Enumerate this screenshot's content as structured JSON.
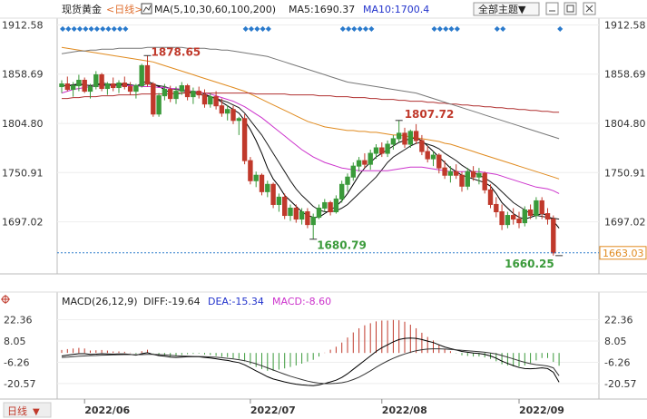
{
  "header": {
    "instrument": "现货黄金",
    "period": "<日线>",
    "ma_label": "MA(5,10,30,60,100,200)",
    "ma5_label": "MA5:1690.37",
    "ma10_label": "MA10:1700.4",
    "theme_select": "全部主题▼"
  },
  "macd_header": {
    "name": "MACD(26,12,9)",
    "diff": "DIFF:-19.64",
    "dea": "DEA:-15.34",
    "macd": "MACD:-8.60"
  },
  "colors": {
    "up": "#3a9a3a",
    "down": "#c0392b",
    "ma5": "#000000",
    "ma10": "#1a1a1a",
    "ma30": "#cc33cc",
    "ma60": "#e08a1e",
    "ma100": "#b03030",
    "ma200": "#777777",
    "macd_pos": "#c0392b",
    "macd_neg": "#3a9a3a",
    "last_price_line": "#2a7acc"
  },
  "chart_data": [
    {
      "type": "candlestick",
      "y_ticks": [
        "1912.58",
        "1858.69",
        "1804.80",
        "1750.91",
        "1697.02"
      ],
      "y_range": [
        1640,
        1920
      ],
      "x_ticks": [
        "2022/06",
        "2022/07",
        "2022/08",
        "2022/09"
      ],
      "annotations": {
        "high1": "1878.65",
        "high2": "1807.72",
        "low1": "1680.79",
        "low2": "1660.25"
      },
      "last_price": "1663.03",
      "candles": [
        [
          1845,
          1852,
          1838,
          1848
        ],
        [
          1848,
          1856,
          1840,
          1842
        ],
        [
          1842,
          1850,
          1834,
          1846
        ],
        [
          1846,
          1858,
          1840,
          1852
        ],
        [
          1852,
          1855,
          1838,
          1840
        ],
        [
          1840,
          1848,
          1832,
          1845
        ],
        [
          1845,
          1862,
          1842,
          1858
        ],
        [
          1858,
          1860,
          1840,
          1843
        ],
        [
          1843,
          1850,
          1836,
          1848
        ],
        [
          1848,
          1855,
          1840,
          1844
        ],
        [
          1844,
          1852,
          1838,
          1849
        ],
        [
          1849,
          1856,
          1842,
          1845
        ],
        [
          1845,
          1850,
          1836,
          1840
        ],
        [
          1840,
          1848,
          1832,
          1846
        ],
        [
          1846,
          1870,
          1844,
          1868
        ],
        [
          1868,
          1879,
          1845,
          1848
        ],
        [
          1848,
          1850,
          1812,
          1815
        ],
        [
          1815,
          1838,
          1812,
          1835
        ],
        [
          1835,
          1848,
          1830,
          1842
        ],
        [
          1842,
          1846,
          1828,
          1832
        ],
        [
          1832,
          1845,
          1826,
          1840
        ],
        [
          1840,
          1850,
          1836,
          1846
        ],
        [
          1846,
          1848,
          1830,
          1834
        ],
        [
          1834,
          1844,
          1826,
          1840
        ],
        [
          1840,
          1845,
          1832,
          1836
        ],
        [
          1836,
          1842,
          1822,
          1826
        ],
        [
          1826,
          1838,
          1822,
          1834
        ],
        [
          1834,
          1840,
          1820,
          1824
        ],
        [
          1824,
          1832,
          1812,
          1816
        ],
        [
          1816,
          1825,
          1808,
          1820
        ],
        [
          1820,
          1824,
          1804,
          1808
        ],
        [
          1808,
          1812,
          1792,
          1810
        ],
        [
          1810,
          1815,
          1760,
          1764
        ],
        [
          1764,
          1768,
          1738,
          1742
        ],
        [
          1742,
          1752,
          1735,
          1748
        ],
        [
          1748,
          1750,
          1726,
          1730
        ],
        [
          1730,
          1742,
          1724,
          1738
        ],
        [
          1738,
          1740,
          1712,
          1716
        ],
        [
          1716,
          1728,
          1708,
          1724
        ],
        [
          1724,
          1728,
          1700,
          1704
        ],
        [
          1704,
          1716,
          1698,
          1712
        ],
        [
          1712,
          1716,
          1696,
          1700
        ],
        [
          1700,
          1712,
          1694,
          1708
        ],
        [
          1708,
          1712,
          1690,
          1694
        ],
        [
          1694,
          1706,
          1678,
          1702
        ],
        [
          1702,
          1716,
          1700,
          1712
        ],
        [
          1712,
          1722,
          1708,
          1718
        ],
        [
          1718,
          1720,
          1704,
          1708
        ],
        [
          1708,
          1726,
          1706,
          1722
        ],
        [
          1722,
          1742,
          1718,
          1738
        ],
        [
          1738,
          1750,
          1730,
          1746
        ],
        [
          1746,
          1762,
          1742,
          1758
        ],
        [
          1758,
          1768,
          1752,
          1764
        ],
        [
          1764,
          1772,
          1756,
          1760
        ],
        [
          1760,
          1776,
          1754,
          1772
        ],
        [
          1772,
          1782,
          1766,
          1778
        ],
        [
          1778,
          1784,
          1768,
          1772
        ],
        [
          1772,
          1786,
          1768,
          1782
        ],
        [
          1782,
          1792,
          1776,
          1788
        ],
        [
          1788,
          1808,
          1784,
          1794
        ],
        [
          1794,
          1800,
          1778,
          1782
        ],
        [
          1782,
          1798,
          1778,
          1796
        ],
        [
          1796,
          1804,
          1782,
          1786
        ],
        [
          1786,
          1792,
          1770,
          1774
        ],
        [
          1774,
          1780,
          1762,
          1766
        ],
        [
          1766,
          1774,
          1758,
          1770
        ],
        [
          1770,
          1772,
          1750,
          1756
        ],
        [
          1756,
          1764,
          1744,
          1748
        ],
        [
          1748,
          1758,
          1740,
          1752
        ],
        [
          1752,
          1760,
          1744,
          1748
        ],
        [
          1748,
          1752,
          1730,
          1736
        ],
        [
          1736,
          1756,
          1732,
          1752
        ],
        [
          1752,
          1758,
          1742,
          1746
        ],
        [
          1746,
          1756,
          1738,
          1750
        ],
        [
          1750,
          1752,
          1728,
          1732
        ],
        [
          1732,
          1738,
          1712,
          1716
        ],
        [
          1716,
          1724,
          1702,
          1708
        ],
        [
          1708,
          1716,
          1688,
          1694
        ],
        [
          1694,
          1708,
          1690,
          1704
        ],
        [
          1704,
          1712,
          1694,
          1700
        ],
        [
          1700,
          1708,
          1690,
          1696
        ],
        [
          1696,
          1714,
          1692,
          1710
        ],
        [
          1710,
          1716,
          1700,
          1704
        ],
        [
          1704,
          1724,
          1700,
          1720
        ],
        [
          1720,
          1724,
          1700,
          1706
        ],
        [
          1706,
          1712,
          1694,
          1700
        ],
        [
          1700,
          1704,
          1660,
          1663
        ]
      ],
      "ma": {
        "ma5": [
          1846,
          1846,
          1847,
          1848,
          1847,
          1846,
          1847,
          1849,
          1848,
          1847,
          1848,
          1848,
          1847,
          1845,
          1849,
          1851,
          1848,
          1845,
          1842,
          1838,
          1837,
          1838,
          1839,
          1839,
          1839,
          1837,
          1834,
          1832,
          1828,
          1824,
          1820,
          1816,
          1808,
          1798,
          1786,
          1772,
          1756,
          1744,
          1736,
          1726,
          1720,
          1714,
          1708,
          1704,
          1702,
          1702,
          1706,
          1710,
          1714,
          1720,
          1728,
          1738,
          1748,
          1756,
          1762,
          1768,
          1772,
          1776,
          1780,
          1784,
          1786,
          1788,
          1789,
          1786,
          1780,
          1774,
          1768,
          1762,
          1756,
          1752,
          1748,
          1746,
          1744,
          1742,
          1740,
          1736,
          1728,
          1718,
          1712,
          1706,
          1702,
          1700,
          1702,
          1704,
          1706,
          1704,
          1698,
          1690
        ],
        "ma10": [
          1846,
          1846,
          1846,
          1847,
          1847,
          1846,
          1847,
          1847,
          1847,
          1847,
          1847,
          1847,
          1847,
          1846,
          1847,
          1848,
          1847,
          1846,
          1845,
          1843,
          1842,
          1841,
          1840,
          1838,
          1837,
          1835,
          1834,
          1832,
          1830,
          1828,
          1825,
          1822,
          1816,
          1808,
          1800,
          1792,
          1782,
          1772,
          1762,
          1752,
          1742,
          1733,
          1726,
          1720,
          1714,
          1710,
          1708,
          1708,
          1709,
          1712,
          1716,
          1722,
          1728,
          1734,
          1740,
          1746,
          1754,
          1762,
          1768,
          1772,
          1776,
          1780,
          1783,
          1784,
          1782,
          1780,
          1777,
          1772,
          1768,
          1764,
          1759,
          1755,
          1751,
          1748,
          1745,
          1741,
          1736,
          1730,
          1724,
          1718,
          1714,
          1710,
          1706,
          1704,
          1703,
          1702,
          1701,
          1700
        ],
        "ma30": [
          1838,
          1840,
          1842,
          1843,
          1844,
          1845,
          1845,
          1846,
          1846,
          1846,
          1846,
          1846,
          1846,
          1846,
          1845,
          1845,
          1845,
          1844,
          1844,
          1843,
          1843,
          1842,
          1841,
          1840,
          1839,
          1838,
          1837,
          1835,
          1833,
          1831,
          1829,
          1826,
          1823,
          1819,
          1815,
          1811,
          1806,
          1801,
          1796,
          1791,
          1786,
          1781,
          1776,
          1772,
          1768,
          1765,
          1762,
          1760,
          1758,
          1756,
          1755,
          1754,
          1753,
          1753,
          1753,
          1753,
          1753,
          1753,
          1754,
          1755,
          1756,
          1757,
          1757,
          1757,
          1756,
          1755,
          1754,
          1753,
          1752,
          1752,
          1752,
          1752,
          1752,
          1752,
          1751,
          1750,
          1749,
          1747,
          1745,
          1743,
          1741,
          1739,
          1737,
          1735,
          1734,
          1733,
          1731,
          1728
        ],
        "ma60": [
          1888,
          1887,
          1886,
          1885,
          1884,
          1883,
          1882,
          1881,
          1880,
          1879,
          1878,
          1877,
          1876,
          1875,
          1874,
          1873,
          1872,
          1870,
          1868,
          1866,
          1864,
          1862,
          1860,
          1858,
          1856,
          1854,
          1852,
          1850,
          1848,
          1846,
          1844,
          1842,
          1840,
          1837,
          1834,
          1831,
          1828,
          1825,
          1822,
          1819,
          1816,
          1813,
          1810,
          1807,
          1805,
          1803,
          1801,
          1800,
          1799,
          1798,
          1797,
          1797,
          1796,
          1796,
          1795,
          1795,
          1794,
          1793,
          1792,
          1792,
          1791,
          1790,
          1789,
          1788,
          1787,
          1786,
          1785,
          1783,
          1782,
          1780,
          1778,
          1776,
          1774,
          1772,
          1770,
          1768,
          1766,
          1764,
          1762,
          1760,
          1758,
          1756,
          1754,
          1752,
          1750,
          1748,
          1746,
          1744
        ],
        "ma100": [
          1832,
          1832,
          1833,
          1833,
          1834,
          1834,
          1834,
          1835,
          1835,
          1835,
          1836,
          1836,
          1836,
          1836,
          1837,
          1837,
          1837,
          1837,
          1837,
          1837,
          1838,
          1838,
          1838,
          1838,
          1838,
          1838,
          1838,
          1838,
          1838,
          1838,
          1838,
          1838,
          1838,
          1838,
          1837,
          1837,
          1837,
          1837,
          1837,
          1837,
          1836,
          1836,
          1836,
          1836,
          1836,
          1835,
          1835,
          1835,
          1834,
          1834,
          1834,
          1833,
          1833,
          1833,
          1832,
          1832,
          1831,
          1831,
          1831,
          1830,
          1830,
          1829,
          1829,
          1829,
          1828,
          1828,
          1827,
          1827,
          1826,
          1826,
          1825,
          1825,
          1824,
          1824,
          1823,
          1823,
          1822,
          1822,
          1821,
          1821,
          1820,
          1820,
          1819,
          1819,
          1818,
          1818,
          1817,
          1817
        ],
        "ma200": [
          1881,
          1882,
          1883,
          1884,
          1884,
          1885,
          1885,
          1886,
          1886,
          1886,
          1887,
          1887,
          1887,
          1887,
          1887,
          1888,
          1888,
          1888,
          1888,
          1888,
          1888,
          1888,
          1887,
          1887,
          1887,
          1887,
          1886,
          1886,
          1885,
          1885,
          1884,
          1883,
          1882,
          1881,
          1880,
          1879,
          1878,
          1876,
          1874,
          1872,
          1870,
          1868,
          1866,
          1864,
          1862,
          1860,
          1858,
          1856,
          1854,
          1852,
          1850,
          1849,
          1848,
          1847,
          1846,
          1845,
          1844,
          1843,
          1842,
          1841,
          1840,
          1839,
          1838,
          1836,
          1834,
          1832,
          1830,
          1828,
          1826,
          1824,
          1822,
          1820,
          1818,
          1816,
          1814,
          1812,
          1810,
          1808,
          1806,
          1804,
          1802,
          1800,
          1798,
          1796,
          1794,
          1792,
          1790,
          1788
        ]
      }
    },
    {
      "type": "macd",
      "y_ticks": [
        "22.36",
        "8.05",
        "-6.26",
        "-20.57"
      ],
      "y_range": [
        -31,
        30
      ],
      "diff": [
        -2,
        -1.5,
        -1,
        -0.5,
        -0.5,
        -1,
        -0.8,
        -0.5,
        -0.6,
        -0.8,
        -0.7,
        -0.7,
        -1,
        -1.5,
        -0.5,
        0.2,
        -1,
        -1.8,
        -2.2,
        -2.8,
        -3,
        -2.8,
        -2.6,
        -2.6,
        -2.6,
        -3,
        -3.4,
        -3.9,
        -4.5,
        -5,
        -5.8,
        -6.5,
        -8,
        -10,
        -12,
        -14,
        -16,
        -17.5,
        -18.5,
        -19.5,
        -20.3,
        -21,
        -21.5,
        -21.8,
        -22,
        -21.5,
        -20.5,
        -19.5,
        -18.3,
        -16.5,
        -14,
        -11,
        -8,
        -5,
        -2,
        1,
        3.5,
        5.5,
        7.5,
        9,
        9.8,
        10,
        9.8,
        9,
        8,
        7,
        5.5,
        4,
        3,
        2,
        1,
        0.5,
        0,
        -0.3,
        -1,
        -2,
        -3.5,
        -5.5,
        -7,
        -8.5,
        -9.8,
        -10.5,
        -10.6,
        -10.4,
        -10,
        -10.5,
        -13,
        -19.64
      ],
      "dea": [
        -3,
        -2.8,
        -2.5,
        -2.2,
        -2,
        -1.8,
        -1.7,
        -1.5,
        -1.4,
        -1.3,
        -1.2,
        -1.1,
        -1.1,
        -1.2,
        -1.1,
        -0.9,
        -0.9,
        -1.1,
        -1.3,
        -1.6,
        -1.9,
        -2.1,
        -2.2,
        -2.3,
        -2.4,
        -2.5,
        -2.7,
        -2.9,
        -3.2,
        -3.6,
        -4,
        -4.5,
        -5.2,
        -6.2,
        -7.3,
        -8.6,
        -10,
        -11.5,
        -12.9,
        -14.3,
        -15.6,
        -16.8,
        -17.9,
        -18.9,
        -19.7,
        -20.3,
        -20.6,
        -20.6,
        -20.4,
        -20,
        -19.2,
        -17.9,
        -16.3,
        -14.3,
        -12,
        -9.6,
        -7.4,
        -5.4,
        -3.6,
        -2,
        -0.7,
        0.5,
        1.5,
        2.2,
        2.6,
        2.8,
        2.8,
        2.6,
        2.4,
        2.1,
        1.8,
        1.5,
        1.2,
        0.9,
        0.5,
        0,
        -0.7,
        -1.7,
        -2.8,
        -4,
        -5.2,
        -6.3,
        -7.2,
        -7.9,
        -8.3,
        -8.8,
        -10,
        -15.34
      ]
    }
  ]
}
